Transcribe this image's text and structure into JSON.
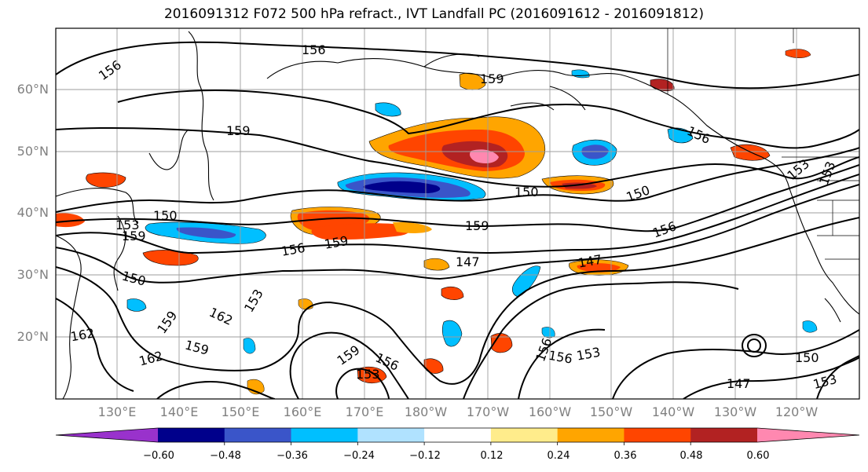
{
  "title": "2016091312 F072 500 hPa refract., IVT Landfall PC (2016091612 - 2016091812)",
  "lat_labels": [
    "60°N",
    "50°N",
    "40°N",
    "30°N",
    "20°N"
  ],
  "lon_labels": [
    "130°E",
    "140°E",
    "150°E",
    "160°E",
    "170°E",
    "180°W",
    "170°W",
    "160°W",
    "150°W",
    "140°W",
    "130°W",
    "120°W"
  ],
  "contour_labels": [
    "156",
    "156",
    "159",
    "159",
    "156",
    "153",
    "153",
    "150",
    "153",
    "159",
    "150",
    "150",
    "159",
    "156",
    "156",
    "159",
    "147",
    "147",
    "150",
    "153",
    "159",
    "162",
    "162",
    "162",
    "159",
    "159",
    "156",
    "153",
    "156",
    "156",
    "153",
    "150",
    "147",
    "153"
  ],
  "colorbar": {
    "ticks": [
      "−0.60",
      "−0.48",
      "−0.36",
      "−0.24",
      "−0.12",
      "0.12",
      "0.24",
      "0.36",
      "0.48",
      "0.60"
    ],
    "colors": [
      "#9932cc",
      "#00008b",
      "#3a55c9",
      "#00bfff",
      "#b0e2ff",
      "#ffffff",
      "#ffec8b",
      "#ffa500",
      "#ff4500",
      "#b22222",
      "#ff88b0"
    ]
  }
}
